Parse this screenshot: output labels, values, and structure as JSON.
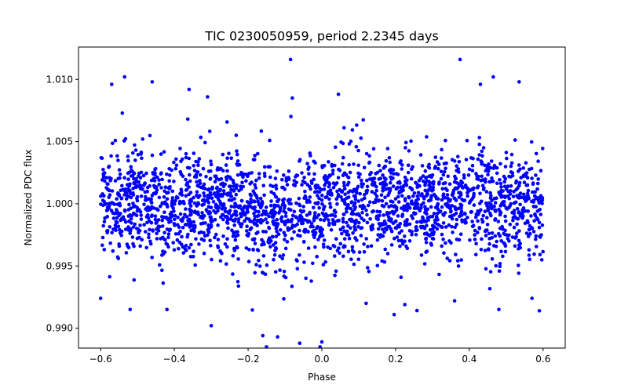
{
  "chart_data": {
    "type": "scatter",
    "title": "TIC 0230050959, period 2.2345 days",
    "xlabel": "Phase",
    "ylabel": "Normalized PDC flux",
    "xlim": [
      -0.66,
      0.66
    ],
    "ylim": [
      0.9884,
      1.0126
    ],
    "x_ticks": [
      -0.6,
      -0.4,
      -0.2,
      0.0,
      0.2,
      0.4,
      0.6
    ],
    "x_tick_labels": [
      "−0.6",
      "−0.4",
      "−0.2",
      "0.0",
      "0.2",
      "0.4",
      "0.6"
    ],
    "y_ticks": [
      0.99,
      0.995,
      1.0,
      1.005,
      1.01
    ],
    "y_tick_labels": [
      "0.990",
      "0.995",
      "1.000",
      "1.005",
      "1.010"
    ],
    "grid": false,
    "marker_color": "#0000ff",
    "series": [
      {
        "name": "Normalized PDC flux",
        "phase_range": [
          -0.6,
          0.6
        ],
        "baseline_flux": 1.0,
        "typical_scatter": 0.0025,
        "transit_center_phase": -0.1,
        "transit_depth": 0.001,
        "outliers": [
          {
            "x": -0.085,
            "y": 1.0116
          },
          {
            "x": 0.375,
            "y": 1.0116
          },
          {
            "x": -0.535,
            "y": 1.0102
          },
          {
            "x": 0.465,
            "y": 1.0102
          },
          {
            "x": -0.57,
            "y": 1.0096
          },
          {
            "x": -0.46,
            "y": 1.0098
          },
          {
            "x": 0.43,
            "y": 1.0096
          },
          {
            "x": 0.535,
            "y": 1.0098
          },
          {
            "x": -0.36,
            "y": 1.0092
          },
          {
            "x": -0.31,
            "y": 1.0086
          },
          {
            "x": -0.08,
            "y": 1.0085
          },
          {
            "x": 0.045,
            "y": 1.0088
          },
          {
            "x": -0.6,
            "y": 0.9924
          },
          {
            "x": 0.59,
            "y": 0.9914
          },
          {
            "x": 0.57,
            "y": 0.9924
          },
          {
            "x": -0.52,
            "y": 0.9915
          },
          {
            "x": -0.42,
            "y": 0.9915
          },
          {
            "x": -0.3,
            "y": 0.9902
          },
          {
            "x": -0.16,
            "y": 0.9894
          },
          {
            "x": -0.15,
            "y": 0.9885
          },
          {
            "x": -0.06,
            "y": 0.9888
          },
          {
            "x": -0.005,
            "y": 0.9885
          },
          {
            "x": 0.0,
            "y": 0.9889
          },
          {
            "x": -0.12,
            "y": 0.9893
          },
          {
            "x": 0.12,
            "y": 0.992
          },
          {
            "x": 0.225,
            "y": 0.9919
          },
          {
            "x": 0.48,
            "y": 0.9915
          },
          {
            "x": 0.36,
            "y": 0.9922
          }
        ]
      }
    ]
  }
}
